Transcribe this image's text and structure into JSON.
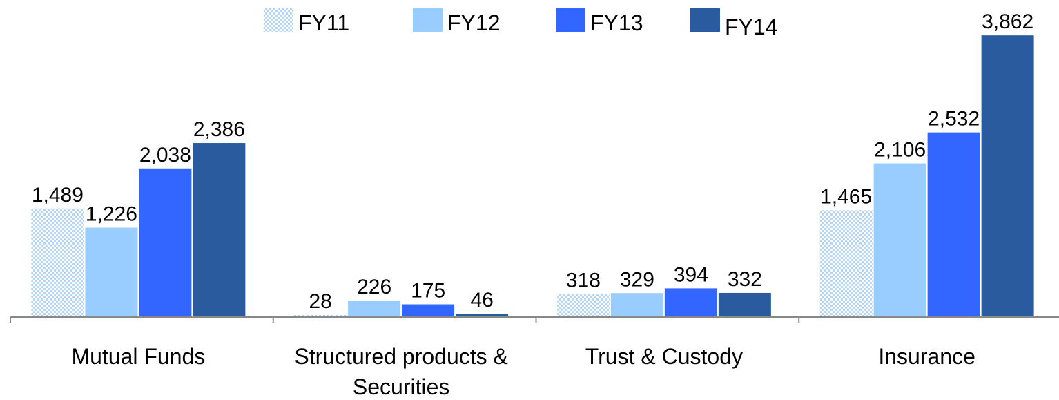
{
  "chart_data": {
    "type": "bar",
    "categories": [
      "Mutual Funds",
      "Structured products & Securities",
      "Trust & Custody",
      "Insurance"
    ],
    "series": [
      {
        "name": "FY11",
        "color": "#b4d5f5",
        "pattern": "dots",
        "values": [
          1489,
          28,
          318,
          1465
        ],
        "value_labels": [
          "1,489",
          "28",
          "318",
          "1,465"
        ]
      },
      {
        "name": "FY12",
        "color": "#99ccff",
        "values": [
          1226,
          226,
          329,
          2106
        ],
        "value_labels": [
          "1,226",
          "226",
          "329",
          "2,106"
        ]
      },
      {
        "name": "FY13",
        "color": "#3366ff",
        "values": [
          2038,
          175,
          394,
          2532
        ],
        "value_labels": [
          "2,038",
          "175",
          "394",
          "2,532"
        ]
      },
      {
        "name": "FY14",
        "color": "#2a5b9e",
        "values": [
          2386,
          46,
          332,
          3862
        ],
        "value_labels": [
          "2,386",
          "46",
          "332",
          "3,862"
        ]
      }
    ],
    "ylim": [
      0,
      4000
    ],
    "legend": "top",
    "grid": false
  }
}
